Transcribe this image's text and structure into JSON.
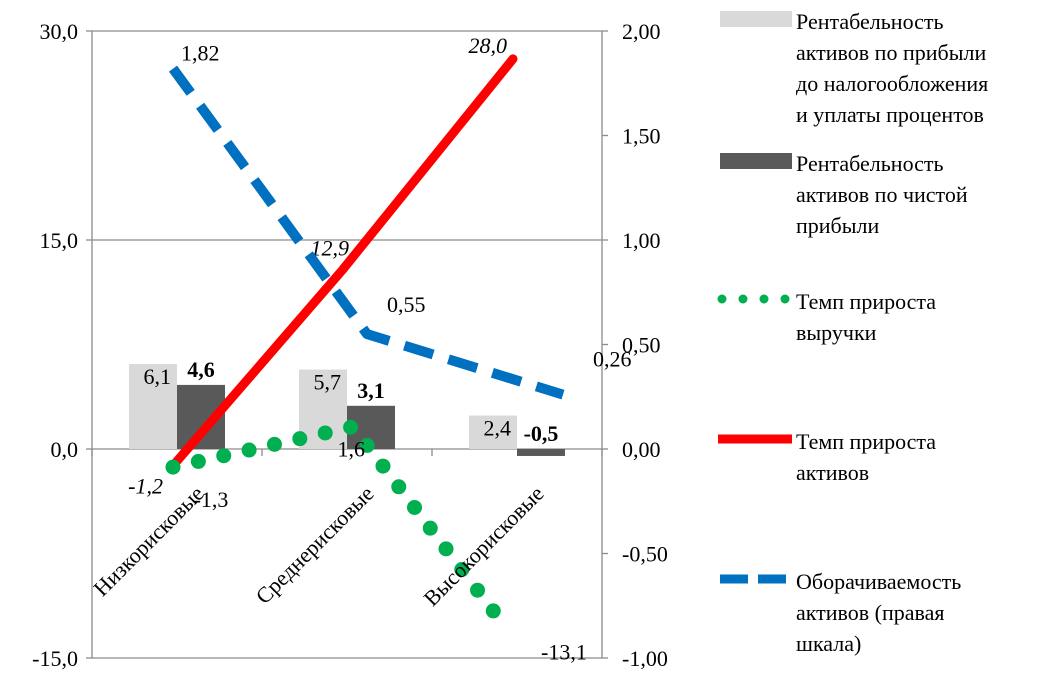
{
  "chart_data": {
    "type": "bar",
    "categories": [
      "Низкорисковые",
      "Среднерисковые",
      "Высокорисковые"
    ],
    "y_left": {
      "lim": [
        -15,
        30
      ],
      "ticks": [
        "30,0",
        "15,0",
        "0,0",
        "-15,0"
      ],
      "tick_values": [
        30,
        15,
        0,
        -15
      ]
    },
    "y_right": {
      "lim": [
        -1,
        2
      ],
      "ticks": [
        "2,00",
        "1,50",
        "1,00",
        "0,50",
        "0,00",
        "-0,50",
        "-1,00"
      ],
      "tick_values": [
        2,
        1.5,
        1,
        0.5,
        0,
        -0.5,
        -1
      ]
    },
    "grid": true,
    "legend_position": "right",
    "series": [
      {
        "name": "Рентабельность активов по прибыли до налогообложения и уплаты процентов",
        "kind": "bar",
        "axis": "left",
        "color": "#d9d9d9",
        "values": [
          6.1,
          5.7,
          2.4
        ],
        "labels": [
          "6,1",
          "5,7",
          "2,4"
        ]
      },
      {
        "name": "Рентабельность активов по чистой прибыли",
        "kind": "bar",
        "axis": "left",
        "color": "#595959",
        "values": [
          4.6,
          3.1,
          -0.5
        ],
        "labels": [
          "4,6",
          "3,1",
          "-0,5"
        ]
      },
      {
        "name": "Темп прироста выручки",
        "kind": "line",
        "style": "dotted",
        "axis": "left",
        "color": "#00b050",
        "values": [
          -1.3,
          1.6,
          -13.1
        ],
        "labels": [
          "-1,3",
          "1,6",
          "-13,1"
        ]
      },
      {
        "name": "Темп прироста активов",
        "kind": "line",
        "style": "solid",
        "axis": "left",
        "color": "#ff0000",
        "values": [
          -1.2,
          12.9,
          28.0
        ],
        "labels": [
          "-1,2",
          "12,9",
          "28,0"
        ]
      },
      {
        "name": "Оборачиваемость активов (правая шкала)",
        "kind": "line",
        "style": "dashed",
        "axis": "right",
        "color": "#0070c0",
        "values": [
          1.82,
          0.55,
          0.26
        ],
        "labels": [
          "1,82",
          "0,55",
          "0,26"
        ]
      }
    ]
  },
  "legend": [
    {
      "lines": [
        "Рентабельность",
        "активов по прибыли",
        "до налогообложения",
        "и уплаты процентов"
      ]
    },
    {
      "lines": [
        "Рентабельность",
        "активов по чистой",
        "прибыли"
      ]
    },
    {
      "lines": [
        "Темп прироста",
        "выручки"
      ]
    },
    {
      "lines": [
        "Темп прироста",
        "активов"
      ]
    },
    {
      "lines": [
        "Оборачиваемость",
        "активов (правая",
        "шкала)"
      ]
    }
  ]
}
